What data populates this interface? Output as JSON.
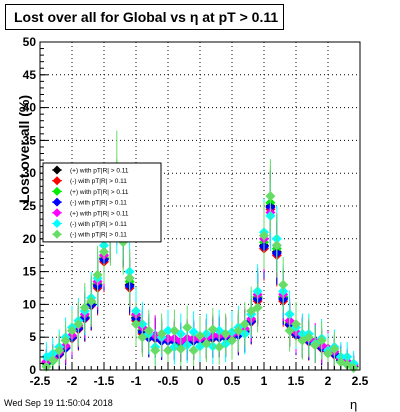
{
  "chart_data": {
    "type": "scatter",
    "title": "Lost over all for Global vs    η  at pT > 0.11",
    "xlabel": "η",
    "ylabel": "Lost over all (%)",
    "xlim": [
      -2.5,
      2.5
    ],
    "ylim": [
      0,
      50
    ],
    "grid": true,
    "legend_position": "middle-left",
    "x_ticks": [
      "-2.5",
      "-2",
      "-1.5",
      "-1",
      "-0.5",
      "0",
      "0.5",
      "1",
      "1.5",
      "2",
      "2.5"
    ],
    "y_ticks": [
      "0",
      "5",
      "10",
      "15",
      "20",
      "25",
      "30",
      "35",
      "40",
      "45",
      "50"
    ],
    "x": [
      -2.4,
      -2.3,
      -2.2,
      -2.1,
      -2.0,
      -1.9,
      -1.8,
      -1.7,
      -1.6,
      -1.5,
      -1.4,
      -1.3,
      -1.2,
      -1.1,
      -1.0,
      -0.9,
      -0.8,
      -0.7,
      -0.6,
      -0.5,
      -0.4,
      -0.3,
      -0.2,
      -0.1,
      0.0,
      0.1,
      0.2,
      0.3,
      0.4,
      0.5,
      0.6,
      0.7,
      0.8,
      0.9,
      1.0,
      1.1,
      1.2,
      1.3,
      1.4,
      1.5,
      1.6,
      1.7,
      1.8,
      1.9,
      2.0,
      2.1,
      2.2,
      2.3,
      2.4
    ],
    "series": [
      {
        "name": "(+) with pT|R| > 0.11",
        "color": "#000000",
        "values": [
          1.0,
          1.5,
          2.5,
          3.5,
          5.0,
          6.5,
          8.0,
          10.0,
          13.0,
          17.0,
          22.0,
          26.0,
          21.0,
          13.0,
          8.0,
          6.0,
          5.0,
          5.0,
          4.5,
          4.5,
          4.5,
          4.0,
          4.5,
          4.5,
          4.5,
          4.5,
          5.0,
          5.0,
          5.0,
          5.0,
          5.5,
          6.0,
          7.5,
          11.0,
          19.0,
          25.0,
          18.0,
          11.0,
          7.0,
          5.5,
          5.0,
          4.5,
          4.0,
          3.5,
          3.0,
          2.5,
          1.5,
          1.0,
          0.5
        ]
      },
      {
        "name": "(-) with pT|R| > 0.11",
        "color": "#ff0000",
        "values": [
          1.2,
          1.6,
          2.3,
          3.4,
          4.8,
          6.2,
          7.8,
          9.8,
          12.5,
          16.5,
          21.5,
          25.5,
          20.5,
          12.5,
          7.5,
          5.5,
          5.0,
          4.8,
          4.6,
          4.5,
          4.3,
          4.2,
          4.4,
          4.5,
          4.6,
          4.7,
          4.8,
          5.0,
          5.1,
          5.2,
          5.4,
          5.9,
          7.3,
          10.5,
          18.5,
          24.5,
          17.5,
          10.5,
          6.8,
          5.3,
          4.8,
          4.3,
          3.8,
          3.3,
          2.8,
          2.3,
          1.6,
          1.1,
          0.6
        ]
      },
      {
        "name": "(+) with pT|R| > 0.11",
        "color": "#00ee00",
        "values": [
          0.9,
          1.4,
          2.6,
          3.6,
          5.2,
          6.6,
          8.2,
          10.2,
          13.2,
          17.2,
          22.5,
          26.5,
          21.5,
          13.5,
          8.3,
          6.2,
          5.2,
          5.1,
          4.7,
          4.6,
          4.6,
          4.1,
          4.6,
          4.6,
          4.4,
          4.6,
          5.1,
          5.1,
          4.9,
          5.1,
          5.6,
          6.1,
          7.6,
          11.2,
          19.5,
          25.5,
          18.5,
          11.2,
          7.2,
          5.6,
          5.1,
          4.6,
          4.1,
          3.6,
          3.1,
          2.6,
          1.4,
          0.9,
          0.4
        ]
      },
      {
        "name": "(-) with pT|R| > 0.11",
        "color": "#0000ff",
        "values": [
          1.1,
          1.7,
          2.4,
          3.3,
          4.9,
          6.3,
          7.9,
          9.9,
          12.8,
          16.8,
          21.8,
          25.8,
          20.8,
          12.8,
          7.8,
          5.8,
          4.9,
          4.9,
          4.4,
          4.4,
          4.4,
          4.3,
          4.3,
          4.4,
          4.5,
          4.8,
          4.9,
          4.9,
          5.0,
          5.3,
          5.3,
          5.8,
          7.4,
          10.8,
          18.8,
          24.8,
          17.8,
          10.8,
          6.9,
          5.4,
          4.9,
          4.4,
          3.9,
          3.4,
          2.9,
          2.4,
          1.5,
          1.0,
          0.5
        ]
      },
      {
        "name": "(+) with pT|R| > 0.11",
        "color": "#ff00ff",
        "values": [
          1.3,
          1.8,
          2.7,
          3.7,
          5.3,
          6.8,
          8.5,
          10.5,
          13.5,
          17.5,
          23.0,
          24.5,
          22.5,
          14.0,
          8.5,
          6.5,
          5.5,
          5.3,
          4.9,
          4.8,
          4.8,
          4.4,
          4.8,
          4.8,
          4.8,
          4.9,
          5.3,
          5.3,
          5.3,
          5.4,
          5.8,
          6.3,
          7.8,
          11.5,
          20.0,
          24.0,
          19.0,
          11.5,
          7.5,
          5.8,
          5.3,
          4.8,
          4.3,
          3.8,
          3.3,
          2.8,
          1.8,
          1.3,
          0.8
        ]
      },
      {
        "name": "(-) with pT|R| > 0.11",
        "color": "#00ffff",
        "values": [
          2.0,
          2.5,
          3.5,
          5.0,
          6.5,
          7.5,
          9.0,
          11.0,
          14.0,
          19.0,
          24.0,
          23.0,
          22.0,
          15.0,
          9.0,
          7.0,
          5.5,
          3.5,
          5.0,
          6.0,
          3.5,
          5.5,
          3.8,
          5.8,
          3.6,
          5.5,
          3.6,
          6.0,
          4.0,
          5.8,
          6.5,
          5.5,
          8.5,
          12.0,
          21.0,
          23.5,
          20.0,
          12.0,
          8.5,
          6.5,
          5.5,
          5.5,
          4.0,
          4.8,
          3.0,
          3.5,
          2.0,
          2.0,
          1.0
        ]
      },
      {
        "name": "(-) with pT|R| > 0.11",
        "color": "#66dd66",
        "values": [
          0.5,
          1.5,
          3.0,
          4.5,
          6.0,
          7.0,
          9.5,
          10.5,
          14.5,
          18.0,
          21.0,
          30.5,
          19.5,
          14.0,
          7.0,
          5.0,
          6.0,
          3.0,
          5.5,
          3.0,
          6.0,
          3.2,
          6.5,
          3.0,
          5.2,
          4.0,
          6.2,
          3.5,
          5.5,
          4.5,
          6.0,
          7.0,
          9.0,
          9.5,
          20.5,
          26.5,
          19.0,
          13.0,
          6.0,
          7.0,
          4.5,
          5.0,
          3.8,
          4.5,
          2.5,
          3.2,
          1.2,
          0.8,
          0.3
        ]
      }
    ]
  },
  "footer": {
    "timestamp": "Wed Sep 19 11:50:04 2018"
  }
}
